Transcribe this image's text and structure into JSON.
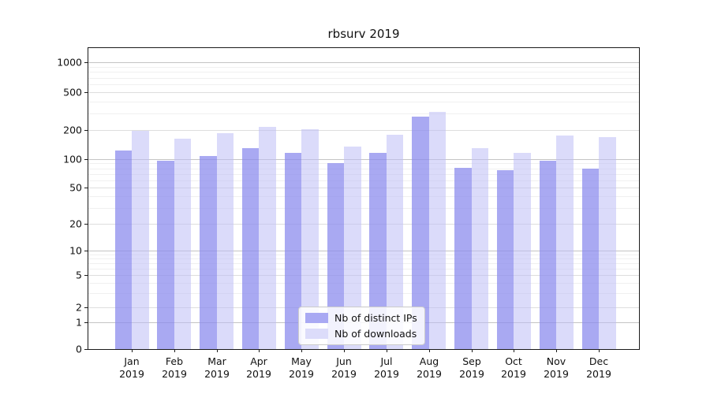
{
  "chart_data": {
    "type": "bar",
    "title": "rbsurv 2019",
    "categories": [
      "Jan",
      "Feb",
      "Mar",
      "Apr",
      "May",
      "Jun",
      "Jul",
      "Aug",
      "Sep",
      "Oct",
      "Nov",
      "Dec"
    ],
    "year_label": "2019",
    "series": [
      {
        "name": "Nb of distinct IPs",
        "color": "#a9a9f3",
        "fill": "rgba(140,140,238,0.75)",
        "values": [
          123,
          96,
          107,
          131,
          117,
          90,
          117,
          275,
          81,
          76,
          97,
          80
        ]
      },
      {
        "name": "Nb of downloads",
        "color": "#dcdcfa",
        "fill": "rgba(190,190,245,0.55)",
        "values": [
          198,
          162,
          184,
          214,
          205,
          136,
          180,
          310,
          131,
          117,
          177,
          170
        ]
      }
    ],
    "y_scale": "symlog",
    "y_ticks": [
      0,
      1,
      2,
      5,
      10,
      20,
      50,
      100,
      200,
      500,
      1000
    ],
    "y_minor_gridlines": [
      3,
      4,
      6,
      7,
      8,
      9,
      30,
      40,
      60,
      70,
      80,
      90,
      300,
      400,
      600,
      700,
      800,
      900
    ],
    "grid": true,
    "legend_position": "lower center",
    "colors": {
      "decade_gridline": "#c4c4c4",
      "tick_gridline": "#dedede",
      "minor_gridline": "#f0f0f0",
      "axis": "#1a1a1a"
    }
  }
}
